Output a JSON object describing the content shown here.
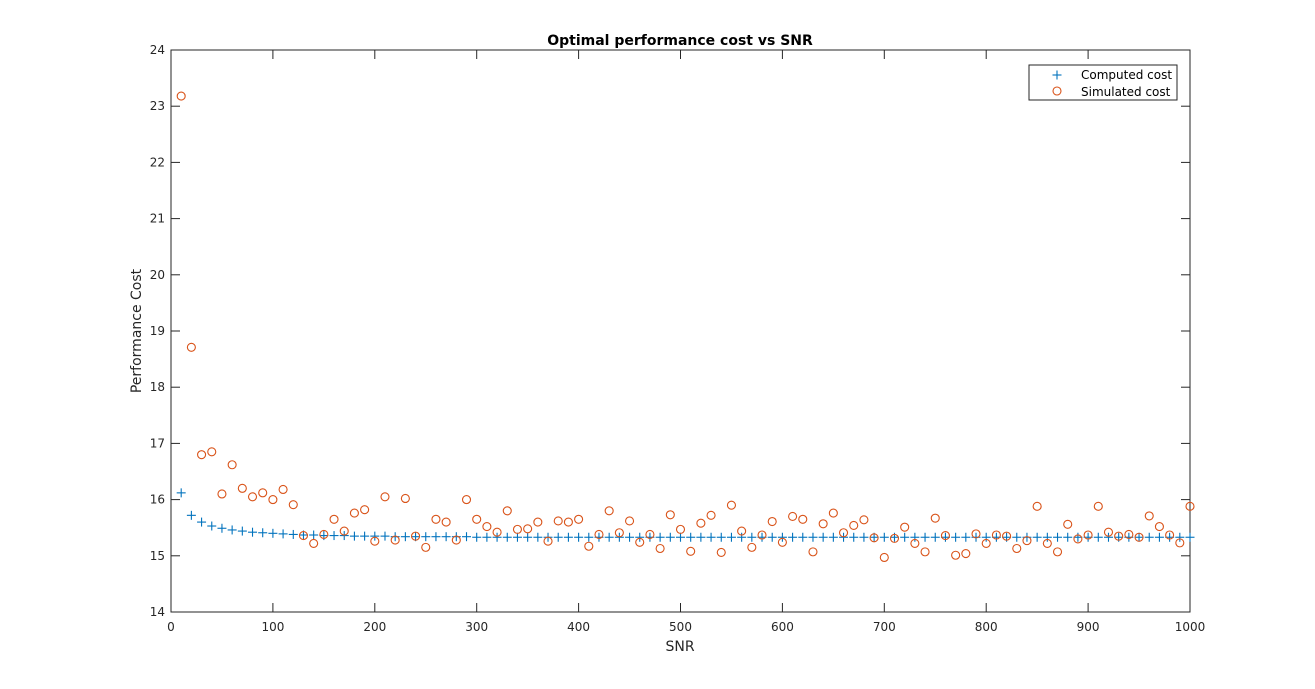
{
  "chart_data": {
    "type": "scatter",
    "title": "Optimal performance cost vs SNR",
    "xlabel": "SNR",
    "ylabel": "Performance Cost",
    "xlim": [
      0,
      1000
    ],
    "ylim": [
      14,
      24
    ],
    "xticks": [
      0,
      100,
      200,
      300,
      400,
      500,
      600,
      700,
      800,
      900,
      1000
    ],
    "yticks": [
      14,
      15,
      16,
      17,
      18,
      19,
      20,
      21,
      22,
      23,
      24
    ],
    "grid": false,
    "legend_position": "top-right",
    "x": [
      10,
      20,
      30,
      40,
      50,
      60,
      70,
      80,
      90,
      100,
      110,
      120,
      130,
      140,
      150,
      160,
      170,
      180,
      190,
      200,
      210,
      220,
      230,
      240,
      250,
      260,
      270,
      280,
      290,
      300,
      310,
      320,
      330,
      340,
      350,
      360,
      370,
      380,
      390,
      400,
      410,
      420,
      430,
      440,
      450,
      460,
      470,
      480,
      490,
      500,
      510,
      520,
      530,
      540,
      550,
      560,
      570,
      580,
      590,
      600,
      610,
      620,
      630,
      640,
      650,
      660,
      670,
      680,
      690,
      700,
      710,
      720,
      730,
      740,
      750,
      760,
      770,
      780,
      790,
      800,
      810,
      820,
      830,
      840,
      850,
      860,
      870,
      880,
      890,
      900,
      910,
      920,
      930,
      940,
      950,
      960,
      970,
      980,
      990,
      1000
    ],
    "series": [
      {
        "name": "Computed cost",
        "marker": "plus",
        "color": "#0072bd",
        "values": [
          16.12,
          15.72,
          15.6,
          15.53,
          15.49,
          15.46,
          15.44,
          15.42,
          15.41,
          15.4,
          15.39,
          15.38,
          15.37,
          15.37,
          15.36,
          15.36,
          15.36,
          15.35,
          15.35,
          15.35,
          15.35,
          15.34,
          15.34,
          15.34,
          15.34,
          15.34,
          15.34,
          15.34,
          15.34,
          15.33,
          15.33,
          15.33,
          15.33,
          15.33,
          15.33,
          15.33,
          15.33,
          15.33,
          15.33,
          15.33,
          15.33,
          15.33,
          15.33,
          15.33,
          15.33,
          15.33,
          15.33,
          15.33,
          15.33,
          15.33,
          15.33,
          15.33,
          15.33,
          15.33,
          15.33,
          15.33,
          15.33,
          15.33,
          15.33,
          15.33,
          15.33,
          15.33,
          15.33,
          15.33,
          15.33,
          15.33,
          15.33,
          15.33,
          15.33,
          15.33,
          15.33,
          15.33,
          15.33,
          15.33,
          15.33,
          15.33,
          15.33,
          15.33,
          15.33,
          15.33,
          15.33,
          15.33,
          15.33,
          15.33,
          15.33,
          15.33,
          15.33,
          15.33,
          15.33,
          15.33,
          15.33,
          15.33,
          15.33,
          15.33,
          15.33,
          15.33,
          15.33,
          15.33,
          15.33,
          15.33
        ]
      },
      {
        "name": "Simulated cost",
        "marker": "circle",
        "color": "#d95319",
        "values": [
          23.18,
          18.71,
          16.8,
          16.85,
          16.1,
          16.62,
          16.2,
          16.05,
          16.12,
          16.0,
          16.18,
          15.91,
          15.36,
          15.22,
          15.38,
          15.65,
          15.44,
          15.76,
          15.82,
          15.26,
          16.05,
          15.28,
          16.02,
          15.35,
          15.15,
          15.65,
          15.6,
          15.28,
          16.0,
          15.65,
          15.52,
          15.42,
          15.8,
          15.47,
          15.48,
          15.6,
          15.26,
          15.62,
          15.6,
          15.65,
          15.17,
          15.38,
          15.8,
          15.41,
          15.62,
          15.24,
          15.38,
          15.13,
          15.73,
          15.47,
          15.08,
          15.58,
          15.72,
          15.06,
          15.9,
          15.44,
          15.15,
          15.37,
          15.61,
          15.24,
          15.7,
          15.65,
          15.07,
          15.57,
          15.76,
          15.41,
          15.54,
          15.64,
          15.32,
          14.97,
          15.31,
          15.51,
          15.22,
          15.07,
          15.67,
          15.36,
          15.01,
          15.04,
          15.39,
          15.22,
          15.37,
          15.35,
          15.13,
          15.27,
          15.88,
          15.22,
          15.07,
          15.56,
          15.3,
          15.37,
          15.88,
          15.42,
          15.35,
          15.38,
          15.33,
          15.71,
          15.52,
          15.37,
          15.23,
          15.88
        ]
      }
    ]
  }
}
